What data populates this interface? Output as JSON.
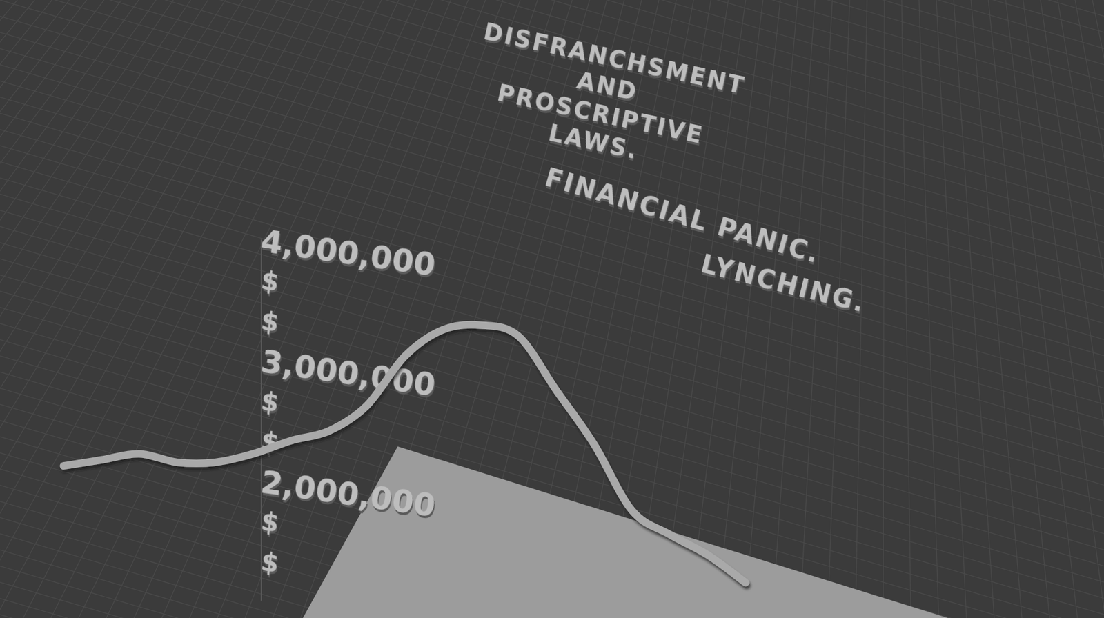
{
  "chart_data": {
    "type": "line",
    "title": "DISFRANCHSMENT AND PROSCRIPTIVE LAWS.",
    "annotations": [
      "FINANCIAL PANIC.",
      "LYNCHING."
    ],
    "categories": [
      null,
      null,
      null,
      null,
      null,
      null,
      null,
      null,
      null,
      null,
      null,
      null,
      null,
      null,
      null,
      null,
      null,
      null,
      null
    ],
    "values": [
      2120000,
      2170000,
      2220000,
      2150000,
      2150000,
      2220000,
      2330000,
      2410000,
      2620000,
      3030000,
      3250000,
      3290000,
      3200000,
      2750000,
      2300000,
      1750000,
      1550000,
      1380000,
      1150000
    ],
    "color": "#a9a9a9",
    "ylim": [
      1000000,
      4000000
    ],
    "yticks": [
      {
        "value": 1333333,
        "label": "$"
      },
      {
        "value": 1666667,
        "label": "$"
      },
      {
        "value": 2000000,
        "label": "2,000,000"
      },
      {
        "value": 2333333,
        "label": "$"
      },
      {
        "value": 2666667,
        "label": "$"
      },
      {
        "value": 3000000,
        "label": "3,000,000"
      },
      {
        "value": 3333333,
        "label": "$"
      },
      {
        "value": 3666667,
        "label": "$"
      },
      {
        "value": 4000000,
        "label": "4,000,000"
      }
    ],
    "tick_labels": "y"
  }
}
